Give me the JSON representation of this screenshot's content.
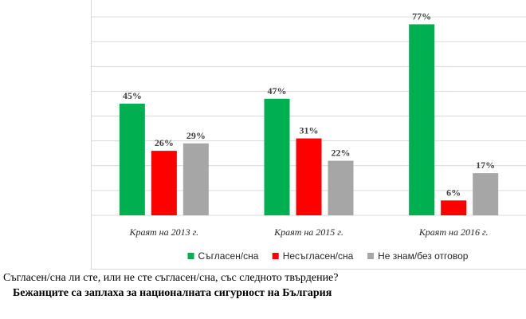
{
  "chart_data": {
    "type": "bar",
    "categories": [
      "Краят на 2013 г.",
      "Краят на 2015 г.",
      "Краят на 2016 г."
    ],
    "series": [
      {
        "name": "Съгласен/сна",
        "values": [
          45,
          47,
          77
        ],
        "labels": [
          "45%",
          "47%",
          "77%"
        ],
        "color": "#00b050"
      },
      {
        "name": "Несъгласен/сна",
        "values": [
          26,
          31,
          6
        ],
        "labels": [
          "26%",
          "31%",
          "6%"
        ],
        "color": "#ff0000"
      },
      {
        "name": "Не знам/без отговор",
        "values": [
          29,
          22,
          17
        ],
        "labels": [
          "29%",
          "22%",
          "17%"
        ],
        "color": "#a6a6a6"
      }
    ],
    "ylim": [
      0,
      90
    ],
    "grid": true,
    "legend": "bottom",
    "gridline_color": "#d9d9d9"
  },
  "caption": {
    "question": "Съгласен/сна ли сте, или не сте съгласен/сна, със следното твърдение?",
    "statement": "Бежанците са заплаха за националната сигурност на България"
  }
}
